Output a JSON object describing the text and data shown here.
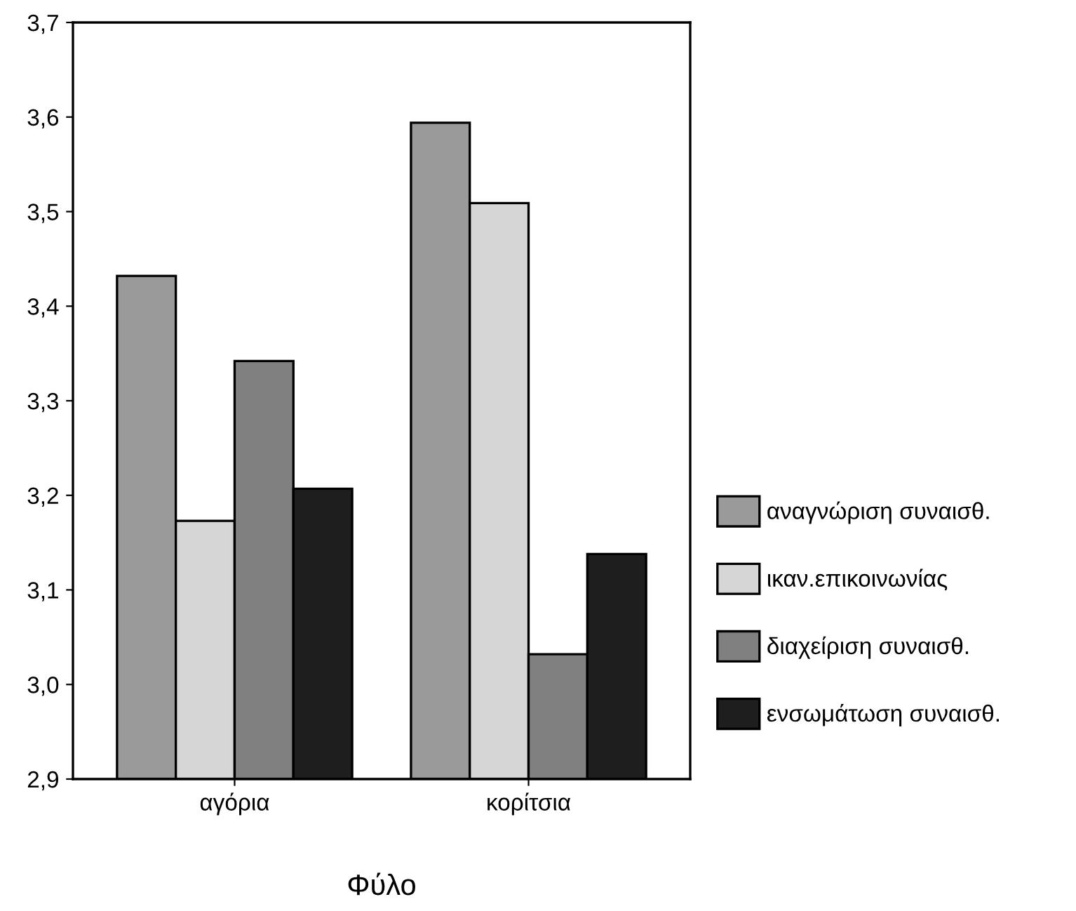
{
  "chart_data": {
    "type": "bar",
    "xlabel": "Φύλο",
    "categories": [
      "αγόρια",
      "κορίτσια"
    ],
    "series": [
      {
        "name": "αναγνώριση συναισθ.",
        "color": "#9a9a9a",
        "values": [
          3.432,
          3.594
        ]
      },
      {
        "name": "ικαν.επικοινωνίας",
        "color": "#d6d6d6",
        "values": [
          3.173,
          3.509
        ]
      },
      {
        "name": "διαχείριση συναισθ.",
        "color": "#808080",
        "values": [
          3.342,
          3.032
        ]
      },
      {
        "name": "ενσωμάτωση συναισθ.",
        "color": "#1e1e1e",
        "values": [
          3.207,
          3.138
        ]
      }
    ],
    "ylim": [
      2.9,
      3.7
    ],
    "yticks": [
      {
        "value": 2.9,
        "label": "2,9"
      },
      {
        "value": 3.0,
        "label": "3,0"
      },
      {
        "value": 3.1,
        "label": "3,1"
      },
      {
        "value": 3.2,
        "label": "3,2"
      },
      {
        "value": 3.3,
        "label": "3,3"
      },
      {
        "value": 3.4,
        "label": "3,4"
      },
      {
        "value": 3.5,
        "label": "3,5"
      },
      {
        "value": 3.6,
        "label": "3,6"
      },
      {
        "value": 3.7,
        "label": "3,7"
      }
    ],
    "grid": false,
    "legend": "right"
  }
}
